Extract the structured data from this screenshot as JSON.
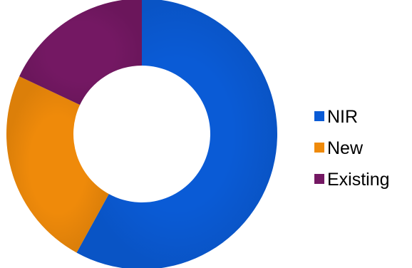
{
  "chart_data": {
    "type": "donut",
    "categories": [
      "NIR",
      "New",
      "Existing"
    ],
    "values": [
      58,
      24,
      18
    ],
    "colors": [
      "#0a5bd6",
      "#ef8a0a",
      "#741863"
    ],
    "legend_position": "right",
    "start_angle_deg": 0,
    "direction": "clockwise"
  }
}
